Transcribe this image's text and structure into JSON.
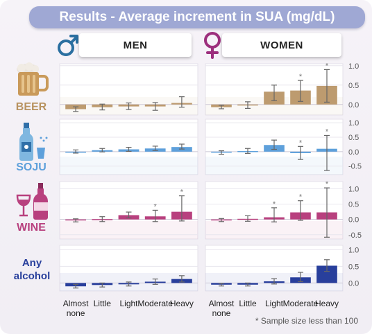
{
  "title": "Results - Average increment in SUA (mg/dL)",
  "panels": {
    "men": {
      "label": "MEN",
      "symbol": "♂"
    },
    "women": {
      "label": "WOMEN",
      "symbol": "♀"
    }
  },
  "footnote": "* Sample size less than 100",
  "colors": {
    "beer": "#bd9b6f",
    "soju": "#5ea0db",
    "wine": "#b8407e",
    "any": "#283f9c",
    "title_bg": "#9fa8d4"
  },
  "chart_data": {
    "type": "bar",
    "title": "Results - Average increment in SUA (mg/dL)",
    "categories": [
      "Almost\nnone",
      "Little",
      "Light",
      "Moderate",
      "Heavy"
    ],
    "panels": [
      "MEN",
      "WOMEN"
    ],
    "note": "* Sample size less than 100",
    "rows": [
      {
        "name": "BEER",
        "color": "#bd9b6f",
        "ylim": [
          -0.2,
          1.05
        ],
        "yticks": [
          0.0,
          0.5,
          1.0
        ],
        "ytick_labels": [
          "0.0",
          "0.5",
          "1.0"
        ],
        "men": {
          "values": [
            -0.12,
            -0.07,
            -0.05,
            -0.05,
            0.04
          ],
          "err_low": [
            -0.18,
            -0.14,
            -0.13,
            -0.15,
            -0.07
          ],
          "err_high": [
            -0.06,
            0.01,
            0.04,
            0.05,
            0.2
          ],
          "small_sample": [
            false,
            false,
            false,
            false,
            false
          ]
        },
        "women": {
          "values": [
            -0.07,
            -0.02,
            0.33,
            0.36,
            0.48
          ],
          "err_low": [
            -0.11,
            -0.1,
            0.1,
            0.08,
            0.06
          ],
          "err_high": [
            -0.02,
            0.07,
            0.5,
            0.62,
            0.9
          ],
          "small_sample": [
            false,
            false,
            false,
            true,
            true
          ]
        }
      },
      {
        "name": "SOJU",
        "color": "#5ea0db",
        "ylim": [
          -0.65,
          1.05
        ],
        "yticks": [
          -0.5,
          0.0,
          0.5,
          1.0
        ],
        "ytick_labels": [
          "-0.5",
          "0.0",
          "0.5",
          "1.0"
        ],
        "men": {
          "values": [
            0.0,
            0.05,
            0.08,
            0.11,
            0.16
          ],
          "err_low": [
            -0.05,
            -0.01,
            0.01,
            0.04,
            0.09
          ],
          "err_high": [
            0.06,
            0.11,
            0.15,
            0.19,
            0.26
          ],
          "small_sample": [
            false,
            false,
            false,
            false,
            false
          ]
        },
        "women": {
          "values": [
            -0.03,
            0.02,
            0.23,
            -0.05,
            0.1
          ],
          "err_low": [
            -0.09,
            -0.06,
            0.08,
            -0.27,
            -0.65
          ],
          "err_high": [
            0.03,
            0.11,
            0.4,
            0.18,
            0.56
          ],
          "small_sample": [
            false,
            false,
            false,
            true,
            true
          ]
        }
      },
      {
        "name": "WINE",
        "color": "#b8407e",
        "ylim": [
          -0.55,
          1.1
        ],
        "yticks": [
          -0.5,
          0.0,
          0.5,
          1.0
        ],
        "ytick_labels": [
          "-0.5",
          "0.0",
          "0.5",
          "1.0"
        ],
        "men": {
          "values": [
            -0.03,
            0.01,
            0.14,
            0.1,
            0.25
          ],
          "err_low": [
            -0.08,
            -0.07,
            0.05,
            -0.07,
            -0.05
          ],
          "err_high": [
            0.02,
            0.09,
            0.24,
            0.3,
            0.77
          ],
          "small_sample": [
            false,
            false,
            false,
            true,
            true
          ]
        },
        "women": {
          "values": [
            -0.02,
            0.02,
            0.07,
            0.23,
            0.23
          ],
          "err_low": [
            -0.07,
            -0.06,
            -0.08,
            -0.03,
            -0.58
          ],
          "err_high": [
            0.03,
            0.12,
            0.38,
            0.61,
            1.03
          ],
          "small_sample": [
            false,
            false,
            true,
            true,
            true
          ]
        }
      },
      {
        "name": "Any alcohol",
        "color": "#283f9c",
        "ylim": [
          -0.2,
          1.05
        ],
        "yticks": [
          0.0,
          0.5,
          1.0
        ],
        "ytick_labels": [
          "0.0",
          "0.5",
          "1.0"
        ],
        "men": {
          "values": [
            -0.1,
            -0.06,
            -0.04,
            0.04,
            0.12
          ],
          "err_low": [
            -0.15,
            -0.12,
            -0.09,
            -0.04,
            0.03
          ],
          "err_high": [
            -0.04,
            0.0,
            0.03,
            0.12,
            0.22
          ],
          "small_sample": [
            false,
            false,
            false,
            false,
            false
          ]
        },
        "women": {
          "values": [
            -0.05,
            -0.05,
            0.05,
            0.17,
            0.52
          ],
          "err_low": [
            -0.09,
            -0.09,
            -0.03,
            0.04,
            0.35
          ],
          "err_high": [
            -0.01,
            0.0,
            0.13,
            0.32,
            0.7
          ],
          "small_sample": [
            false,
            false,
            false,
            false,
            false
          ]
        }
      }
    ]
  },
  "row_labels": [
    "BEER",
    "SOJU",
    "WINE",
    "Any alcohol"
  ]
}
